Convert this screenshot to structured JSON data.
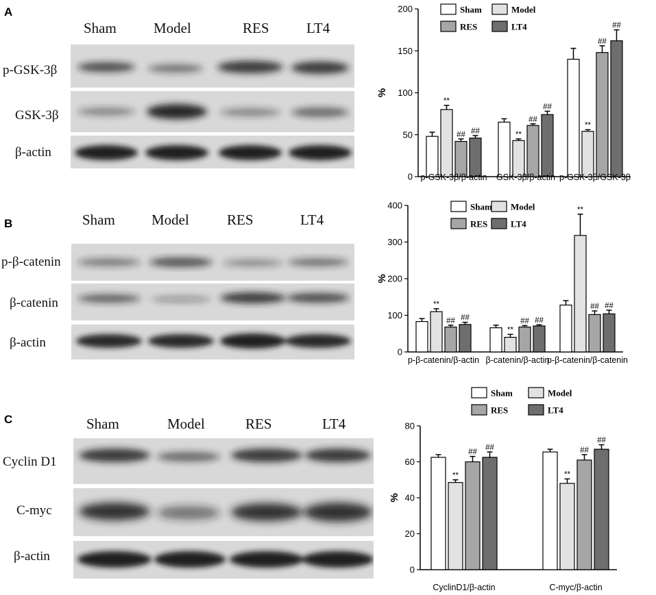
{
  "panels": [
    {
      "letter": "A",
      "lanes": [
        "Sham",
        "Model",
        "RES",
        "LT4"
      ],
      "rows": [
        "p-GSK-3β",
        "GSK-3β",
        "β-actin"
      ]
    },
    {
      "letter": "B",
      "lanes": [
        "Sham",
        "Model",
        "RES",
        "LT4"
      ],
      "rows": [
        "p-β-catenin",
        "β-catenin",
        "β-actin"
      ]
    },
    {
      "letter": "C",
      "lanes": [
        "Sham",
        "Model",
        "RES",
        "LT4"
      ],
      "rows": [
        "Cyclin D1",
        "C-myc",
        "β-actin"
      ]
    }
  ],
  "colors": {
    "Sham": "#ffffff",
    "Model": "#e2e2e2",
    "RES": "#a6a6a6",
    "LT4": "#6e6e6e",
    "outline": "#000000"
  },
  "chart_data": [
    {
      "type": "bar",
      "ylabel": "%",
      "ylim": [
        0,
        200
      ],
      "yticks": [
        0,
        50,
        100,
        150,
        200
      ],
      "categories": [
        "p-GSK-3β/β-actin",
        "GSK-3β/β-actin",
        "p-GSK-3β/GSK-3β"
      ],
      "legend_position": "top",
      "series": [
        {
          "name": "Sham",
          "values": [
            48,
            65,
            140
          ],
          "errors": [
            5,
            4,
            13
          ],
          "marks": [
            "",
            "",
            ""
          ]
        },
        {
          "name": "Model",
          "values": [
            80,
            43,
            54
          ],
          "errors": [
            5,
            2,
            2
          ],
          "marks": [
            "**",
            "**",
            "**"
          ]
        },
        {
          "name": "RES",
          "values": [
            42,
            61,
            148
          ],
          "errors": [
            3,
            2,
            8
          ],
          "marks": [
            "##",
            "##",
            "##"
          ]
        },
        {
          "name": "LT4",
          "values": [
            46,
            74,
            162
          ],
          "errors": [
            3,
            4,
            13
          ],
          "marks": [
            "##",
            "##",
            "##"
          ]
        }
      ]
    },
    {
      "type": "bar",
      "ylabel": "%",
      "ylim": [
        0,
        400
      ],
      "yticks": [
        0,
        100,
        200,
        300,
        400
      ],
      "categories": [
        "p-β-catenin/β-actin",
        "β-catenin/β-actin",
        "p-β-catenin/β-catenin"
      ],
      "legend_position": "top",
      "series": [
        {
          "name": "Sham",
          "values": [
            83,
            66,
            128
          ],
          "errors": [
            8,
            7,
            12
          ],
          "marks": [
            "",
            "",
            ""
          ]
        },
        {
          "name": "Model",
          "values": [
            110,
            40,
            318
          ],
          "errors": [
            8,
            8,
            58
          ],
          "marks": [
            "**",
            "**",
            "**"
          ]
        },
        {
          "name": "RES",
          "values": [
            68,
            68,
            102
          ],
          "errors": [
            5,
            4,
            10
          ],
          "marks": [
            "##",
            "##",
            "##"
          ]
        },
        {
          "name": "LT4",
          "values": [
            75,
            71,
            104
          ],
          "errors": [
            6,
            3,
            10
          ],
          "marks": [
            "##",
            "##",
            "##"
          ]
        }
      ]
    },
    {
      "type": "bar",
      "ylabel": "%",
      "ylim": [
        0,
        80
      ],
      "yticks": [
        0,
        20,
        40,
        60,
        80
      ],
      "categories": [
        "CyclinD1/β-actin",
        "C-myc/β-actin"
      ],
      "legend_position": "top",
      "series": [
        {
          "name": "Sham",
          "values": [
            62.5,
            65.5
          ],
          "errors": [
            1.5,
            1.5
          ],
          "marks": [
            "",
            ""
          ]
        },
        {
          "name": "Model",
          "values": [
            48.5,
            48
          ],
          "errors": [
            1.5,
            2.5
          ],
          "marks": [
            "**",
            "**"
          ]
        },
        {
          "name": "RES",
          "values": [
            60,
            61
          ],
          "errors": [
            3,
            3
          ],
          "marks": [
            "##",
            "##"
          ]
        },
        {
          "name": "LT4",
          "values": [
            62.5,
            67
          ],
          "errors": [
            3,
            2.5
          ],
          "marks": [
            "##",
            "##"
          ]
        }
      ]
    }
  ]
}
